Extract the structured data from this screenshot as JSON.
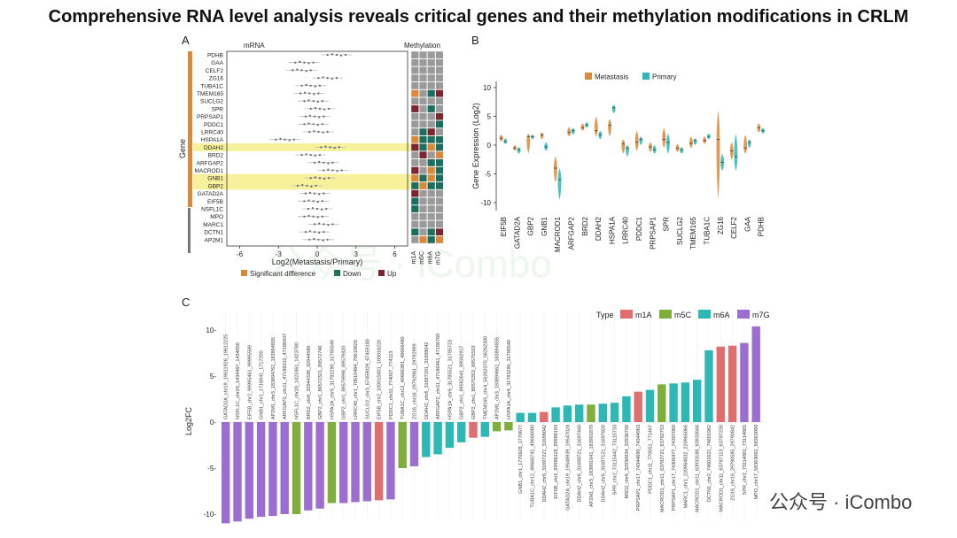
{
  "title": "Comprehensive RNA level analysis reveals critical genes and their methylation modifications in CRLM",
  "watermark_text": "公众号 · iCombo",
  "colors": {
    "accent_orange": "#d8893a",
    "green": "#7fae3a",
    "teal": "#2eb8b5",
    "red": "#e16e6e",
    "purple": "#9d6ed1",
    "down": "#1e6e5f",
    "up": "#7c2530",
    "gray_cell": "#9a9a9a",
    "highlight": "#f6ef8a"
  },
  "panelA": {
    "label": "A",
    "mrna_header": "mRNA",
    "methylation_header": "Methylation",
    "gene_axis_label": "Gene",
    "genes": [
      "PDHB",
      "GAA",
      "CELF2",
      "ZG16",
      "TUBA1C",
      "TMEM165",
      "SUCLG2",
      "SPR",
      "PRPSAP1",
      "PDDC1",
      "LRRC40",
      "HSPA1A",
      "DDAH2",
      "BRD2",
      "ARFGAP2",
      "MACROD1",
      "GNB1",
      "GBP2",
      "GATAD2A",
      "EIF5B",
      "NSFL1C",
      "MPO",
      "MARC1",
      "DCTN1",
      "AP2M1"
    ],
    "highlighted": [
      "DDAH2",
      "GNB1",
      "GBP2"
    ],
    "log2_center": [
      1.5,
      -1.0,
      -1.2,
      0.8,
      -0.5,
      -0.6,
      -0.3,
      0.2,
      -0.2,
      -0.3,
      0.1,
      -2.5,
      1.0,
      -0.5,
      0.5,
      1.2,
      0.2,
      -0.8,
      -0.2,
      -0.3,
      0.0,
      -0.3,
      0.5,
      -0.2,
      0.1
    ],
    "xticks": [
      "-6",
      "-3",
      "0",
      "3",
      "6"
    ],
    "xticks_values": [
      -6,
      -3,
      0,
      3,
      6
    ],
    "xlabel": "Log2(Metastasis/Primary)",
    "meth_cols": [
      "m1A",
      "m5C",
      "m6A",
      "m7G"
    ],
    "meth_matrix": [
      [
        "N",
        "N",
        "N",
        "N"
      ],
      [
        "N",
        "N",
        "N",
        "N"
      ],
      [
        "N",
        "N",
        "N",
        "N"
      ],
      [
        "N",
        "N",
        "N",
        "N"
      ],
      [
        "N",
        "N",
        "N",
        "N"
      ],
      [
        "S",
        "N",
        "D",
        "U"
      ],
      [
        "N",
        "N",
        "N",
        "N"
      ],
      [
        "U",
        "N",
        "D",
        "N"
      ],
      [
        "N",
        "N",
        "N",
        "U"
      ],
      [
        "N",
        "N",
        "N",
        "D"
      ],
      [
        "N",
        "D",
        "U",
        "N"
      ],
      [
        "S",
        "D",
        "D",
        "D"
      ],
      [
        "U",
        "D",
        "S",
        "D"
      ],
      [
        "N",
        "U",
        "N",
        "S"
      ],
      [
        "N",
        "N",
        "D",
        "D"
      ],
      [
        "U",
        "N",
        "S",
        "D"
      ],
      [
        "S",
        "D",
        "S",
        "D"
      ],
      [
        "D",
        "S",
        "D",
        "D"
      ],
      [
        "U",
        "N",
        "N",
        "N"
      ],
      [
        "D",
        "N",
        "N",
        "N"
      ],
      [
        "D",
        "N",
        "N",
        "N"
      ],
      [
        "N",
        "N",
        "N",
        "N"
      ],
      [
        "N",
        "N",
        "N",
        "N"
      ],
      [
        "D",
        "N",
        "D",
        "U"
      ],
      [
        "N",
        "S",
        "D",
        "S"
      ]
    ],
    "legend": [
      {
        "label": "Significant difference",
        "color": "#d8893a"
      },
      {
        "label": "Down",
        "color": "#1e6e5f"
      },
      {
        "label": "Up",
        "color": "#7c2530"
      }
    ]
  },
  "panelB": {
    "label": "B",
    "legend": [
      {
        "label": "Metastasis",
        "color": "#d8893a"
      },
      {
        "label": "Primary",
        "color": "#2eb8b5"
      }
    ],
    "ylabel": "Gene Expression (Log2)",
    "yticks": [
      "10",
      "5",
      "0",
      "-5",
      "-10"
    ],
    "yticks_values": [
      10,
      5,
      0,
      -5,
      -10
    ],
    "genes": [
      "EIF5B",
      "GATAD2A",
      "GBP2",
      "GNB1",
      "MACROD1",
      "ARFGAP2",
      "BRD2",
      "DDAH2",
      "HSPA1A",
      "LRRC40",
      "PDDC1",
      "PRPSAP1",
      "SPR",
      "SUCLG2",
      "TMEM165",
      "TUBA1C",
      "ZG16",
      "CELF2",
      "GAA",
      "PDHB"
    ],
    "metastasis": [
      {
        "median": 1.2,
        "low": 0.6,
        "high": 1.8
      },
      {
        "median": -0.5,
        "low": -1.0,
        "high": 0.0
      },
      {
        "median": 1.5,
        "low": -1.5,
        "high": 2.0
      },
      {
        "median": 1.8,
        "low": 1.0,
        "high": 2.2
      },
      {
        "median": -4.0,
        "low": -6.5,
        "high": -2.0
      },
      {
        "median": 2.2,
        "low": 1.5,
        "high": 3.2
      },
      {
        "median": 3.0,
        "low": 2.5,
        "high": 3.8
      },
      {
        "median": 2.5,
        "low": 1.5,
        "high": 5.0
      },
      {
        "median": 3.5,
        "low": 1.5,
        "high": 4.5
      },
      {
        "median": 0.2,
        "low": -1.5,
        "high": 1.0
      },
      {
        "median": 0.5,
        "low": -1.0,
        "high": 2.5
      },
      {
        "median": -0.3,
        "low": -1.2,
        "high": 0.5
      },
      {
        "median": 1.0,
        "low": -0.5,
        "high": 3.0
      },
      {
        "median": -0.5,
        "low": -1.2,
        "high": 0.2
      },
      {
        "median": 0.3,
        "low": -0.5,
        "high": 1.5
      },
      {
        "median": 0.8,
        "low": 0.2,
        "high": 1.5
      },
      {
        "median": 1.0,
        "low": -9.5,
        "high": 6.0
      },
      {
        "median": -1.0,
        "low": -2.5,
        "high": 0.5
      },
      {
        "median": -0.5,
        "low": -1.5,
        "high": 1.8
      },
      {
        "median": 3.0,
        "low": 2.2,
        "high": 3.8
      }
    ],
    "primary": [
      {
        "median": 0.6,
        "low": 0.2,
        "high": 1.2
      },
      {
        "median": -0.8,
        "low": -1.5,
        "high": -0.3
      },
      {
        "median": 1.5,
        "low": 1.0,
        "high": 1.8
      },
      {
        "median": -0.3,
        "low": -1.0,
        "high": 0.5
      },
      {
        "median": -6.0,
        "low": -9.5,
        "high": -4.0
      },
      {
        "median": 2.5,
        "low": 1.8,
        "high": 3.0
      },
      {
        "median": 3.5,
        "low": 3.0,
        "high": 4.0
      },
      {
        "median": 1.8,
        "low": 1.0,
        "high": 2.5
      },
      {
        "median": 6.5,
        "low": 5.5,
        "high": 7.0
      },
      {
        "median": -0.5,
        "low": -2.0,
        "high": 0.0
      },
      {
        "median": 1.0,
        "low": 0.0,
        "high": 1.5
      },
      {
        "median": -0.8,
        "low": -1.5,
        "high": 0.0
      },
      {
        "median": 0.5,
        "low": -1.5,
        "high": 2.0
      },
      {
        "median": -0.8,
        "low": -1.5,
        "high": -0.3
      },
      {
        "median": 0.8,
        "low": 0.0,
        "high": 1.2
      },
      {
        "median": 1.5,
        "low": 1.0,
        "high": 2.0
      },
      {
        "median": -3.0,
        "low": -4.5,
        "high": -1.5
      },
      {
        "median": -2.0,
        "low": -4.5,
        "high": 2.0
      },
      {
        "median": 0.5,
        "low": -0.5,
        "high": 1.0
      },
      {
        "median": 2.5,
        "low": 2.0,
        "high": 3.0
      }
    ]
  },
  "chart_data": {
    "type": "bar",
    "label": "C",
    "ylabel": "Log2FC",
    "ylim": [
      -11,
      11
    ],
    "yticks": [
      10,
      5,
      0,
      -5,
      -10
    ],
    "yticklabels": [
      "10-",
      "5-",
      "0-",
      "-5-",
      "-10-"
    ],
    "legend_title": "Type",
    "legend": [
      {
        "label": "m1A",
        "color": "#e16e6e"
      },
      {
        "label": "m5C",
        "color": "#7fae3a"
      },
      {
        "label": "m6A",
        "color": "#2eb8b5"
      },
      {
        "label": "m7G",
        "color": "#9d6ed1"
      }
    ],
    "bars": [
      {
        "label": "GATAD2A_chr19_19611926_19612225",
        "value": -11.0,
        "type": "m7G"
      },
      {
        "label": "NSFL1C_chr20_1434487_1434850",
        "value": -10.8,
        "type": "m7G"
      },
      {
        "label": "EIF5B_chr2_99995461_99995589",
        "value": -10.5,
        "type": "m7G"
      },
      {
        "label": "GNB1_chr1_1716941_1717200",
        "value": -10.3,
        "type": "m7G"
      },
      {
        "label": "AP2M1_chr3_183894761_183894855",
        "value": -10.2,
        "type": "m7G"
      },
      {
        "label": "ARFGAP2_chr11_47188310_47188437",
        "value": -10.0,
        "type": "m7G"
      },
      {
        "label": "NSFL1C_chr20_1423361_1423780",
        "value": -10.0,
        "type": "m5C"
      },
      {
        "label": "BRD2_chr6_32944338_32944580",
        "value": -9.6,
        "type": "m7G"
      },
      {
        "label": "GBP2_chr1_89572321_89572740",
        "value": -9.4,
        "type": "m7G"
      },
      {
        "label": "HSPA1A_chr6_31782290_31785540",
        "value": -8.8,
        "type": "m5C"
      },
      {
        "label": "GBP2_chr1_89579998_89579820",
        "value": -8.8,
        "type": "m7G"
      },
      {
        "label": "LRRC40_chr1_70610484_70610620",
        "value": -8.7,
        "type": "m7G"
      },
      {
        "label": "SUCLG2_chr3_67459029_67459180",
        "value": -8.6,
        "type": "m7G"
      },
      {
        "label": "EIF5B_chr2_100015601_100016220",
        "value": -8.5,
        "type": "m1A"
      },
      {
        "label": "PDDC1_chr11_774007_774113",
        "value": -8.4,
        "type": "m7G"
      },
      {
        "label": "TUBA1C_chr12_49666391_49666480",
        "value": -5.0,
        "type": "m5C"
      },
      {
        "label": "ZG16_chr16_29792961_29792999",
        "value": -4.8,
        "type": "m7G"
      },
      {
        "label": "DDAH2_chr6_31697201_31698042",
        "value": -3.8,
        "type": "m6A"
      },
      {
        "label": "ARFGAP2_chr11_47186461_47186760",
        "value": -3.5,
        "type": "m6A"
      },
      {
        "label": "HSPA1A_chr6_31785521_31785723",
        "value": -2.8,
        "type": "m6A"
      },
      {
        "label": "GBP2_chr1_89582641_89582917",
        "value": -2.2,
        "type": "m6A"
      },
      {
        "label": "GBP2_chr1_89575353_89575553",
        "value": -1.7,
        "type": "m1A"
      },
      {
        "label": "TMEM165_chr4_56262070_56262300",
        "value": -1.6,
        "type": "m6A"
      },
      {
        "label": "AP2M1_chr3_183894661_183894855",
        "value": -1.0,
        "type": "m5C"
      },
      {
        "label": "HSPA1A_chr6_31783290_31785540",
        "value": -0.9,
        "type": "m5C"
      },
      {
        "label": "GNB1_chr1_1770628_1770677",
        "value": 1.0,
        "type": "m6A"
      },
      {
        "label": "TUBA1C_chr12_49666741_49666980",
        "value": 1.0,
        "type": "m6A"
      },
      {
        "label": "DDAH2_chr6_31697221_31698042",
        "value": 1.1,
        "type": "m1A"
      },
      {
        "label": "EIF5B_chr2_99988118_99988193",
        "value": 1.6,
        "type": "m6A"
      },
      {
        "label": "GATAD2A_chr19_19548939_19547028",
        "value": 1.8,
        "type": "m6A"
      },
      {
        "label": "DDAH2_chr6_31698721_31697440",
        "value": 1.9,
        "type": "m6A"
      },
      {
        "label": "AP2M1_chr3_183901641_183901879",
        "value": 1.9,
        "type": "m5C"
      },
      {
        "label": "DDAH2_chr6_31697121_31697820",
        "value": 2.0,
        "type": "m6A"
      },
      {
        "label": "SPR_chr2_73115442_73115733",
        "value": 2.1,
        "type": "m6A"
      },
      {
        "label": "BRD2_chr6_32936834_32936790",
        "value": 2.8,
        "type": "m6A"
      },
      {
        "label": "PRPSAP1_chr17_74344690_74344963",
        "value": 3.3,
        "type": "m1A"
      },
      {
        "label": "PDDC1_chr11_770051_771467",
        "value": 3.5,
        "type": "m6A"
      },
      {
        "label": "MACROD1_chr11_63782721_63782753",
        "value": 4.1,
        "type": "m5C"
      },
      {
        "label": "PRPSAP1_chr17_74306477_74307060",
        "value": 4.2,
        "type": "m6A"
      },
      {
        "label": "MARC1_chr1_220964832_220965066",
        "value": 4.3,
        "type": "m6A"
      },
      {
        "label": "MACROD1_chr11_63933188_63933566",
        "value": 4.6,
        "type": "m6A"
      },
      {
        "label": "DCTN1_chr2_74601621_74601962",
        "value": 7.8,
        "type": "m6A"
      },
      {
        "label": "MACROD1_chr11_63787113_63787235",
        "value": 8.2,
        "type": "m1A"
      },
      {
        "label": "ZG16_chr16_29790585_29790842",
        "value": 8.3,
        "type": "m1A"
      },
      {
        "label": "SPR_chr2_73114801_73114865",
        "value": 8.6,
        "type": "m7G"
      },
      {
        "label": "MPO_chr17_58363062_58363090",
        "value": 10.4,
        "type": "m7G"
      }
    ]
  }
}
